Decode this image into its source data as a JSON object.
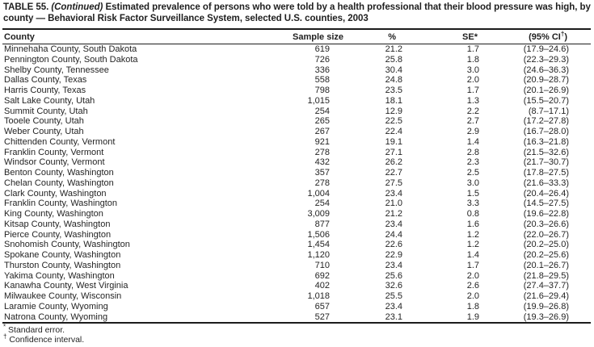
{
  "table": {
    "title_prefix": "TABLE 55.",
    "title_continued": "(Continued)",
    "title_rest": "Estimated prevalence of persons who were told by a health professional that their blood pressure was high, by county — Behavioral Risk Factor Surveillance System, selected U.S. counties, 2003",
    "columns": [
      {
        "label": "County"
      },
      {
        "label": "Sample size"
      },
      {
        "label": "%"
      },
      {
        "label": "SE*"
      },
      {
        "label": "(95% CI",
        "sup": "†",
        "after": ")"
      }
    ],
    "rows": [
      [
        "Minnehaha County, South Dakota",
        "619",
        "21.2",
        "1.7",
        "(17.9–24.6)"
      ],
      [
        "Pennington County, South Dakota",
        "726",
        "25.8",
        "1.8",
        "(22.3–29.3)"
      ],
      [
        "Shelby County, Tennessee",
        "336",
        "30.4",
        "3.0",
        "(24.6–36.3)"
      ],
      [
        "Dallas County, Texas",
        "558",
        "24.8",
        "2.0",
        "(20.9–28.7)"
      ],
      [
        "Harris County, Texas",
        "798",
        "23.5",
        "1.7",
        "(20.1–26.9)"
      ],
      [
        "Salt Lake County, Utah",
        "1,015",
        "18.1",
        "1.3",
        "(15.5–20.7)"
      ],
      [
        "Summit County, Utah",
        "254",
        "12.9",
        "2.2",
        "(8.7–17.1)"
      ],
      [
        "Tooele County, Utah",
        "265",
        "22.5",
        "2.7",
        "(17.2–27.8)"
      ],
      [
        "Weber County, Utah",
        "267",
        "22.4",
        "2.9",
        "(16.7–28.0)"
      ],
      [
        "Chittenden County, Vermont",
        "921",
        "19.1",
        "1.4",
        "(16.3–21.8)"
      ],
      [
        "Franklin County, Vermont",
        "278",
        "27.1",
        "2.8",
        "(21.5–32.6)"
      ],
      [
        "Windsor County, Vermont",
        "432",
        "26.2",
        "2.3",
        "(21.7–30.7)"
      ],
      [
        "Benton County, Washington",
        "357",
        "22.7",
        "2.5",
        "(17.8–27.5)"
      ],
      [
        "Chelan County, Washington",
        "278",
        "27.5",
        "3.0",
        "(21.6–33.3)"
      ],
      [
        "Clark County, Washington",
        "1,004",
        "23.4",
        "1.5",
        "(20.4–26.4)"
      ],
      [
        "Franklin County, Washington",
        "254",
        "21.0",
        "3.3",
        "(14.5–27.5)"
      ],
      [
        "King County, Washington",
        "3,009",
        "21.2",
        "0.8",
        "(19.6–22.8)"
      ],
      [
        "Kitsap County, Washington",
        "877",
        "23.4",
        "1.6",
        "(20.3–26.6)"
      ],
      [
        "Pierce County, Washington",
        "1,506",
        "24.4",
        "1.2",
        "(22.0–26.7)"
      ],
      [
        "Snohomish County, Washington",
        "1,454",
        "22.6",
        "1.2",
        "(20.2–25.0)"
      ],
      [
        "Spokane County, Washington",
        "1,120",
        "22.9",
        "1.4",
        "(20.2–25.6)"
      ],
      [
        "Thurston County, Washington",
        "710",
        "23.4",
        "1.7",
        "(20.1–26.7)"
      ],
      [
        "Yakima County, Washington",
        "692",
        "25.6",
        "2.0",
        "(21.8–29.5)"
      ],
      [
        "Kanawha County, West Virginia",
        "402",
        "32.6",
        "2.6",
        "(27.4–37.7)"
      ],
      [
        "Milwaukee County, Wisconsin",
        "1,018",
        "25.5",
        "2.0",
        "(21.6–29.4)"
      ],
      [
        "Laramie County, Wyoming",
        "657",
        "23.4",
        "1.8",
        "(19.9–26.8)"
      ],
      [
        "Natrona County, Wyoming",
        "527",
        "23.1",
        "1.9",
        "(19.3–26.9)"
      ]
    ],
    "footnotes": [
      {
        "marker": "*",
        "text": "Standard error."
      },
      {
        "marker": "†",
        "text": "Confidence interval."
      }
    ]
  }
}
